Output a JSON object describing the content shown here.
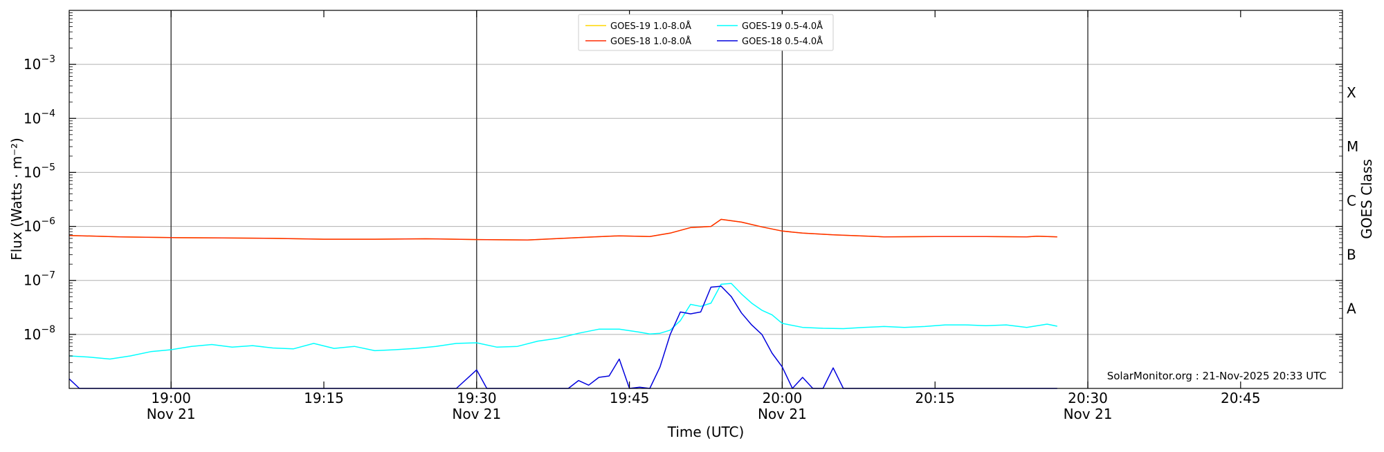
{
  "chart_data": {
    "type": "line",
    "title": "",
    "xlabel": "Time (UTC)",
    "ylabel": "Flux (Watts · m⁻²)",
    "y_scale": "log",
    "ylim": [
      1e-09,
      0.01
    ],
    "xlim": [
      "2025-11-21 18:50",
      "2025-11-21 20:55"
    ],
    "grid": "horizontal",
    "legend": "top-center",
    "y_ticks": [
      {
        "value": 1e-08,
        "base": "10",
        "exp": "−8"
      },
      {
        "value": 1e-07,
        "base": "10",
        "exp": "−7"
      },
      {
        "value": 1e-06,
        "base": "10",
        "exp": "−6"
      },
      {
        "value": 1e-05,
        "base": "10",
        "exp": "−5"
      },
      {
        "value": 0.0001,
        "base": "10",
        "exp": "−4"
      },
      {
        "value": 0.001,
        "base": "10",
        "exp": "−3"
      }
    ],
    "x_ticks": [
      {
        "time": "19:00",
        "label": "19:00",
        "date": "Nov 21"
      },
      {
        "time": "19:15",
        "label": "19:15",
        "date": ""
      },
      {
        "time": "19:30",
        "label": "19:30",
        "date": "Nov 21"
      },
      {
        "time": "19:45",
        "label": "19:45",
        "date": ""
      },
      {
        "time": "20:00",
        "label": "20:00",
        "date": "Nov 21"
      },
      {
        "time": "20:15",
        "label": "20:15",
        "date": ""
      },
      {
        "time": "20:30",
        "label": "20:30",
        "date": "Nov 21"
      },
      {
        "time": "20:45",
        "label": "20:45",
        "date": ""
      }
    ],
    "vertical_lines": [
      "19:00",
      "19:30",
      "20:00",
      "20:30"
    ],
    "right_axis": {
      "label": "GOES Class",
      "classes": [
        {
          "label": "A",
          "value": 3e-08
        },
        {
          "label": "B",
          "value": 3e-07
        },
        {
          "label": "C",
          "value": 3e-06
        },
        {
          "label": "M",
          "value": 3e-05
        },
        {
          "label": "X",
          "value": 0.0003
        }
      ]
    },
    "credit": "SolarMonitor.org : 21-Nov-2025 20:33 UTC",
    "series": [
      {
        "name": "GOES-19 1.0-8.0Å",
        "color": "#ffd700",
        "x": [
          "18:50",
          "18:55",
          "19:00",
          "19:05",
          "19:10",
          "19:15",
          "19:20",
          "19:25",
          "19:30",
          "19:35",
          "19:40",
          "19:44",
          "19:47",
          "19:49",
          "19:51",
          "19:53",
          "19:54",
          "19:56",
          "19:58",
          "20:00",
          "20:02",
          "20:05",
          "20:10",
          "20:15",
          "20:20",
          "20:24",
          "20:25",
          "20:27"
        ],
        "values": [
          6.8e-07,
          6.4e-07,
          6.2e-07,
          6.1e-07,
          6e-07,
          5.8e-07,
          5.8e-07,
          5.9e-07,
          5.7e-07,
          5.6e-07,
          6.2e-07,
          6.7e-07,
          6.5e-07,
          7.5e-07,
          9.5e-07,
          1e-06,
          1.35e-06,
          1.2e-06,
          9.8e-07,
          8.2e-07,
          7.5e-07,
          7e-07,
          6.4e-07,
          6.5e-07,
          6.5e-07,
          6.4e-07,
          6.6e-07,
          6.4e-07
        ]
      },
      {
        "name": "GOES-18 1.0-8.0Å",
        "color": "#ff2a00",
        "x": [
          "18:50",
          "18:55",
          "19:00",
          "19:05",
          "19:10",
          "19:15",
          "19:20",
          "19:25",
          "19:30",
          "19:35",
          "19:40",
          "19:44",
          "19:47",
          "19:49",
          "19:51",
          "19:53",
          "19:54",
          "19:56",
          "19:58",
          "20:00",
          "20:02",
          "20:05",
          "20:10",
          "20:15",
          "20:20",
          "20:24",
          "20:25",
          "20:27"
        ],
        "values": [
          6.8e-07,
          6.4e-07,
          6.2e-07,
          6.1e-07,
          6e-07,
          5.8e-07,
          5.8e-07,
          5.9e-07,
          5.7e-07,
          5.6e-07,
          6.2e-07,
          6.7e-07,
          6.5e-07,
          7.5e-07,
          9.5e-07,
          1e-06,
          1.35e-06,
          1.2e-06,
          9.8e-07,
          8.2e-07,
          7.5e-07,
          7e-07,
          6.4e-07,
          6.5e-07,
          6.5e-07,
          6.4e-07,
          6.6e-07,
          6.4e-07
        ]
      },
      {
        "name": "GOES-19 0.5-4.0Å",
        "color": "#00ffff",
        "x": [
          "18:50",
          "18:52",
          "18:54",
          "18:56",
          "18:58",
          "19:00",
          "19:02",
          "19:04",
          "19:06",
          "19:08",
          "19:10",
          "19:12",
          "19:14",
          "19:16",
          "19:18",
          "19:20",
          "19:22",
          "19:24",
          "19:26",
          "19:28",
          "19:30",
          "19:32",
          "19:34",
          "19:36",
          "19:38",
          "19:40",
          "19:42",
          "19:44",
          "19:46",
          "19:47",
          "19:48",
          "19:49",
          "19:50",
          "19:51",
          "19:52",
          "19:53",
          "19:54",
          "19:55",
          "19:56",
          "19:57",
          "19:58",
          "19:59",
          "20:00",
          "20:02",
          "20:04",
          "20:06",
          "20:08",
          "20:10",
          "20:12",
          "20:14",
          "20:16",
          "20:18",
          "20:20",
          "20:22",
          "20:24",
          "20:26",
          "20:27"
        ],
        "values": [
          4e-09,
          3.8e-09,
          3.5e-09,
          4e-09,
          4.8e-09,
          5.2e-09,
          6e-09,
          6.5e-09,
          5.8e-09,
          6.2e-09,
          5.6e-09,
          5.4e-09,
          6.8e-09,
          5.5e-09,
          6e-09,
          5e-09,
          5.2e-09,
          5.5e-09,
          6e-09,
          6.8e-09,
          7e-09,
          5.8e-09,
          6e-09,
          7.5e-09,
          8.5e-09,
          1.05e-08,
          1.25e-08,
          1.25e-08,
          1.1e-08,
          1.02e-08,
          1.05e-08,
          1.2e-08,
          1.8e-08,
          3.6e-08,
          3.3e-08,
          3.8e-08,
          8.5e-08,
          8.8e-08,
          5.6e-08,
          3.8e-08,
          2.8e-08,
          2.3e-08,
          1.6e-08,
          1.35e-08,
          1.3e-08,
          1.28e-08,
          1.35e-08,
          1.4e-08,
          1.35e-08,
          1.4e-08,
          1.5e-08,
          1.5e-08,
          1.45e-08,
          1.5e-08,
          1.35e-08,
          1.55e-08,
          1.42e-08
        ]
      },
      {
        "name": "GOES-18 0.5-4.0Å",
        "color": "#0000dd",
        "x": [
          "18:50",
          "18:51",
          "19:28",
          "19:30",
          "19:31",
          "19:39",
          "19:40",
          "19:41",
          "19:42",
          "19:43",
          "19:44",
          "19:45",
          "19:46",
          "19:47",
          "19:48",
          "19:49",
          "19:50",
          "19:51",
          "19:52",
          "19:53",
          "19:54",
          "19:55",
          "19:56",
          "19:57",
          "19:58",
          "19:59",
          "20:00",
          "20:01",
          "20:02",
          "20:03",
          "20:04",
          "20:05",
          "20:06",
          "20:27"
        ],
        "values": [
          1.5e-09,
          1e-09,
          1e-09,
          2.2e-09,
          1e-09,
          1e-09,
          1.4e-09,
          1.15e-09,
          1.6e-09,
          1.7e-09,
          3.5e-09,
          1e-09,
          1.05e-09,
          1e-09,
          2.5e-09,
          1e-08,
          2.6e-08,
          2.4e-08,
          2.6e-08,
          7.5e-08,
          7.8e-08,
          5e-08,
          2.5e-08,
          1.5e-08,
          1e-08,
          4.5e-09,
          2.5e-09,
          1e-09,
          1.6e-09,
          1e-09,
          1e-09,
          2.4e-09,
          1e-09,
          1e-09
        ]
      }
    ]
  }
}
